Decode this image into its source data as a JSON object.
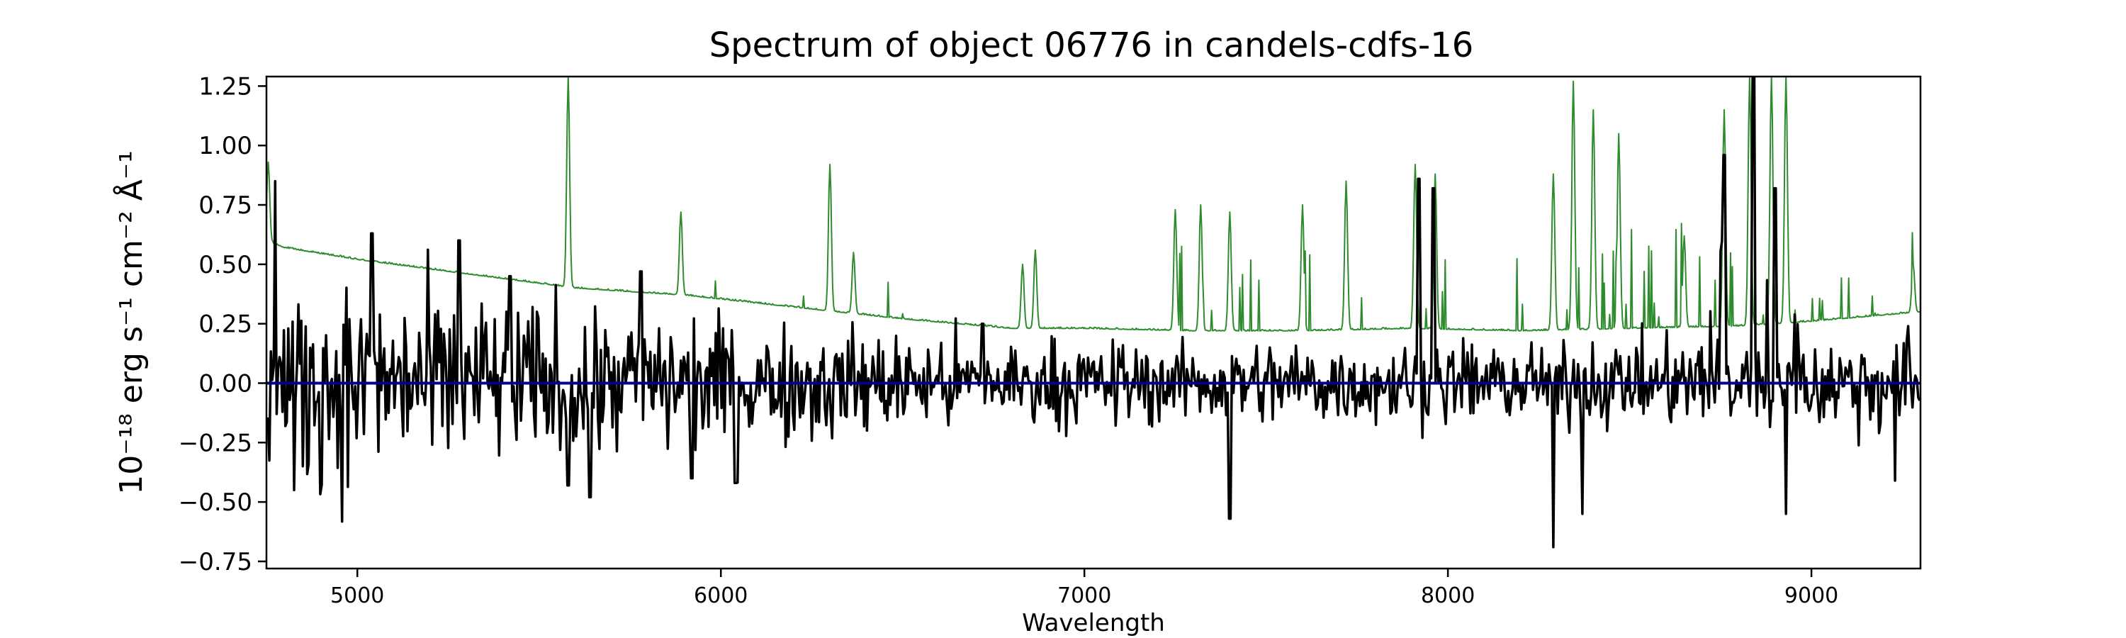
{
  "chart_data": {
    "type": "line",
    "title": "Spectrum of object 06776 in candels-cdfs-16",
    "xlabel": "Wavelength",
    "ylabel": "10⁻¹⁸ erg s⁻¹ cm⁻² Å⁻¹",
    "xlim": [
      4750,
      9300
    ],
    "ylim": [
      -0.78,
      1.29
    ],
    "x_ticks": [
      5000,
      6000,
      7000,
      8000,
      9000
    ],
    "x_tick_labels": [
      "5000",
      "6000",
      "7000",
      "8000",
      "9000"
    ],
    "y_ticks": [
      -0.75,
      -0.5,
      -0.25,
      0.0,
      0.25,
      0.5,
      0.75,
      1.0,
      1.25
    ],
    "y_tick_labels": [
      "−0.75",
      "−0.50",
      "−0.25",
      "0.00",
      "0.25",
      "0.50",
      "0.75",
      "1.00",
      "1.25"
    ],
    "grid": false,
    "series": [
      {
        "role": "error",
        "color": "#2e8b2e",
        "continuum": [
          [
            4750,
            0.6
          ],
          [
            4800,
            0.57
          ],
          [
            5000,
            0.52
          ],
          [
            5300,
            0.46
          ],
          [
            5600,
            0.4
          ],
          [
            5900,
            0.37
          ],
          [
            6200,
            0.32
          ],
          [
            6500,
            0.27
          ],
          [
            6800,
            0.23
          ],
          [
            7000,
            0.23
          ],
          [
            7300,
            0.22
          ],
          [
            7600,
            0.22
          ],
          [
            7900,
            0.23
          ],
          [
            8200,
            0.22
          ],
          [
            8500,
            0.23
          ],
          [
            8800,
            0.24
          ],
          [
            9000,
            0.26
          ],
          [
            9300,
            0.3
          ]
        ],
        "lines": [
          [
            4755,
            0.93
          ],
          [
            5580,
            1.29
          ],
          [
            5890,
            0.72
          ],
          [
            6300,
            0.92
          ],
          [
            6365,
            0.55
          ],
          [
            6830,
            0.5
          ],
          [
            6865,
            0.56
          ],
          [
            7250,
            0.73
          ],
          [
            7320,
            0.75
          ],
          [
            7400,
            0.72
          ],
          [
            7600,
            0.75
          ],
          [
            7720,
            0.85
          ],
          [
            7910,
            0.92
          ],
          [
            7965,
            0.88
          ],
          [
            8290,
            0.88
          ],
          [
            8345,
            1.27
          ],
          [
            8400,
            1.15
          ],
          [
            8470,
            1.05
          ],
          [
            8650,
            0.62
          ],
          [
            8760,
            1.15
          ],
          [
            8830,
            1.29
          ],
          [
            8890,
            1.29
          ],
          [
            8930,
            1.29
          ],
          [
            9280,
            0.5
          ]
        ]
      },
      {
        "role": "flux",
        "color": "#000000",
        "peaks": [
          [
            4775,
            0.85
          ],
          [
            4825,
            -0.45
          ],
          [
            5040,
            0.63
          ],
          [
            5280,
            0.6
          ],
          [
            5420,
            0.45
          ],
          [
            5580,
            -0.43
          ],
          [
            5640,
            -0.48
          ],
          [
            5780,
            0.47
          ],
          [
            5920,
            -0.4
          ],
          [
            6040,
            -0.42
          ],
          [
            6720,
            0.25
          ],
          [
            7400,
            -0.57
          ],
          [
            7920,
            0.86
          ],
          [
            7960,
            0.82
          ],
          [
            8290,
            -0.69
          ],
          [
            8370,
            -0.55
          ],
          [
            8760,
            0.96
          ],
          [
            8840,
            1.17
          ],
          [
            8900,
            0.82
          ],
          [
            8930,
            -0.55
          ],
          [
            9230,
            -0.41
          ]
        ]
      },
      {
        "role": "zero",
        "color": "#00008b",
        "values": [
          0.0
        ]
      }
    ]
  }
}
